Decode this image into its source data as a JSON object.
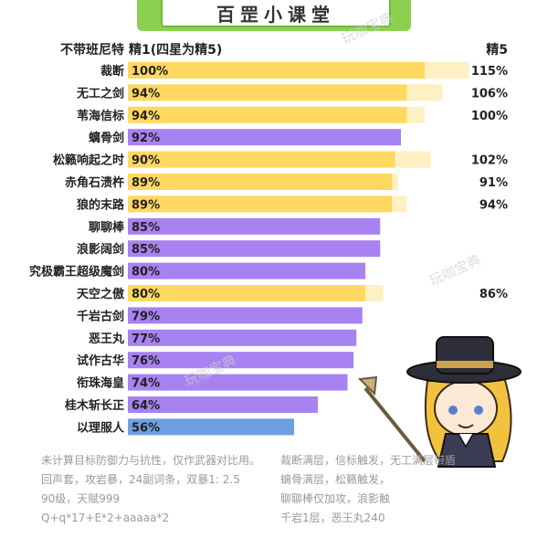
{
  "header": {
    "title": "百罡小课堂",
    "col_label": "不带班尼特",
    "col_base": "精1(四星为精5)",
    "col_r5": "精5"
  },
  "colors": {
    "yellow": "#ffd861",
    "yellow_ext": "#fdf0c3",
    "purple": "#a782f0",
    "blue": "#6f9fe0",
    "banner": "#8bd14f"
  },
  "chart_data": {
    "type": "bar",
    "orientation": "horizontal",
    "xlim": [
      0,
      120
    ],
    "categories": [
      "裁断",
      "无工之剑",
      "苇海信标",
      "螭骨剑",
      "松籁响起之时",
      "赤角石溃杵",
      "狼的末路",
      "聊聊棒",
      "浪影阔剑",
      "究极霸王超级魔剑",
      "天空之傲",
      "千岩古剑",
      "恶王丸",
      "试作古华",
      "衔珠海皇",
      "桂木斩长正",
      "以理服人"
    ],
    "series": [
      {
        "values": [
          100,
          94,
          94,
          92,
          90,
          89,
          89,
          85,
          85,
          80,
          80,
          79,
          77,
          76,
          74,
          64,
          56
        ],
        "labels": [
          "100%",
          "94%",
          "94%",
          "92%",
          "90%",
          "89%",
          "89%",
          "85%",
          "85%",
          "80%",
          "80%",
          "79%",
          "77%",
          "76%",
          "74%",
          "64%",
          "56%"
        ]
      },
      {
        "values": [
          115,
          106,
          100,
          null,
          102,
          91,
          94,
          null,
          null,
          null,
          86,
          null,
          null,
          null,
          null,
          null,
          null
        ],
        "labels": [
          "115%",
          "106%",
          "100%",
          "",
          "102%",
          "91%",
          "94%",
          "",
          "",
          "",
          "86%",
          "",
          "",
          "",
          "",
          "",
          ""
        ]
      }
    ],
    "bar_colors": [
      "yellow",
      "yellow",
      "yellow",
      "purple",
      "yellow",
      "yellow",
      "yellow",
      "purple",
      "purple",
      "purple",
      "yellow",
      "purple",
      "purple",
      "purple",
      "purple",
      "purple",
      "blue"
    ]
  },
  "notes": {
    "left": [
      "未计算目标防御力与抗性，仅作武器对比用。",
      "回声套，攻岩暴，24副词条，双暴1: 2.5",
      "90级，天赋999",
      "Q+q*17+E*2+aaaaa*2"
    ],
    "right": [
      "裁断满层，信标触发，无工满层带盾",
      "螭骨满层，松籁触发，",
      "聊聊棒仅加攻，浪影触",
      "千岩1层，恶王丸240"
    ]
  },
  "watermark": "玩咖宝典"
}
